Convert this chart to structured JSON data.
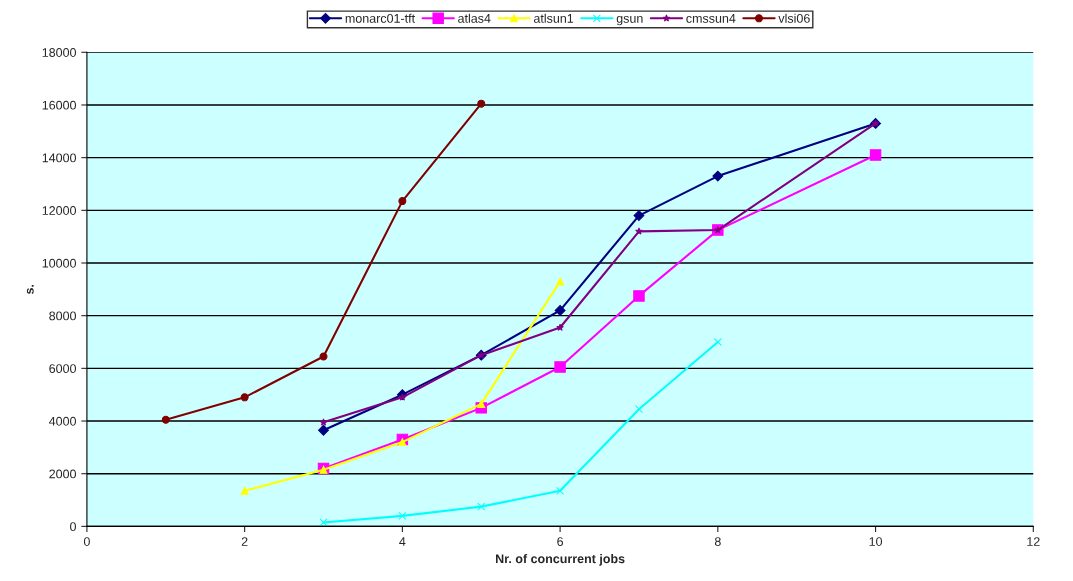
{
  "chart_data": {
    "type": "line",
    "xlabel": "Nr. of concurrent jobs",
    "ylabel": "s.",
    "xlim": [
      0,
      12
    ],
    "xticks": [
      0,
      2,
      4,
      6,
      8,
      10,
      12
    ],
    "ylim": [
      0,
      18000
    ],
    "yticks": [
      0,
      2000,
      4000,
      6000,
      8000,
      10000,
      12000,
      14000,
      16000,
      18000
    ],
    "grid": "y",
    "legend": "top",
    "series": [
      {
        "name": "monarc01-tft",
        "color": "#000080",
        "marker": "diamond",
        "x": [
          3,
          4,
          5,
          6,
          7,
          8,
          10
        ],
        "values": [
          3650,
          5000,
          6500,
          8200,
          11800,
          13300,
          15300
        ]
      },
      {
        "name": "atlas4",
        "color": "#ff00ff",
        "marker": "square",
        "x": [
          3,
          4,
          5,
          6,
          7,
          8,
          10
        ],
        "values": [
          2200,
          3300,
          4500,
          6050,
          8750,
          11250,
          14100
        ]
      },
      {
        "name": "atlsun1",
        "color": "#ffff00",
        "marker": "triangle",
        "x": [
          2,
          3,
          4,
          5,
          6
        ],
        "values": [
          1350,
          2150,
          3200,
          4650,
          9300
        ]
      },
      {
        "name": "gsun",
        "color": "#00ffff",
        "marker": "cross",
        "x": [
          3,
          4,
          5,
          6,
          7,
          8
        ],
        "values": [
          150,
          400,
          750,
          1350,
          4450,
          7000
        ]
      },
      {
        "name": "cmssun4",
        "color": "#800080",
        "marker": "star",
        "x": [
          3,
          4,
          5,
          6,
          7,
          8,
          10
        ],
        "values": [
          3950,
          4900,
          6500,
          7550,
          11200,
          11250,
          15300
        ]
      },
      {
        "name": "vlsi06",
        "color": "#800000",
        "marker": "circle",
        "x": [
          1,
          2,
          3,
          4,
          5
        ],
        "values": [
          4050,
          4900,
          6450,
          12350,
          16050
        ]
      }
    ]
  }
}
